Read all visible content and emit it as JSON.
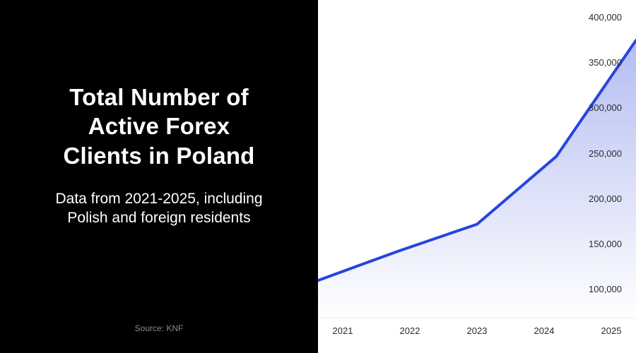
{
  "left_panel": {
    "title": "Total Number of\nActive Forex\nClients in Poland",
    "subtitle": "Data from 2021-2025, including\nPolish and foreign residents",
    "source": "Source: KNF"
  },
  "chart_data": {
    "type": "area",
    "title": "Total Number of Active Forex Clients in Poland",
    "categories": [
      "2021",
      "2022",
      "2023",
      "2024",
      "2025"
    ],
    "values": [
      110000,
      142000,
      172000,
      247000,
      375000
    ],
    "xlabel": "",
    "ylabel": "",
    "ylim": [
      100000,
      400000
    ],
    "yticks": [
      {
        "value": 400000,
        "label": "400,000"
      },
      {
        "value": 350000,
        "label": "350,000"
      },
      {
        "value": 300000,
        "label": "300,000"
      },
      {
        "value": 250000,
        "label": "250,000"
      },
      {
        "value": 200000,
        "label": "200,000"
      },
      {
        "value": 150000,
        "label": "150,000"
      },
      {
        "value": 100000,
        "label": "100,000"
      }
    ],
    "grid": false,
    "legend": false,
    "line_color": "#2545df",
    "fill_top_color": "#aeb7f0",
    "fill_bottom_color": "#ffffff",
    "axis_text_color": "#2b2b2b"
  }
}
